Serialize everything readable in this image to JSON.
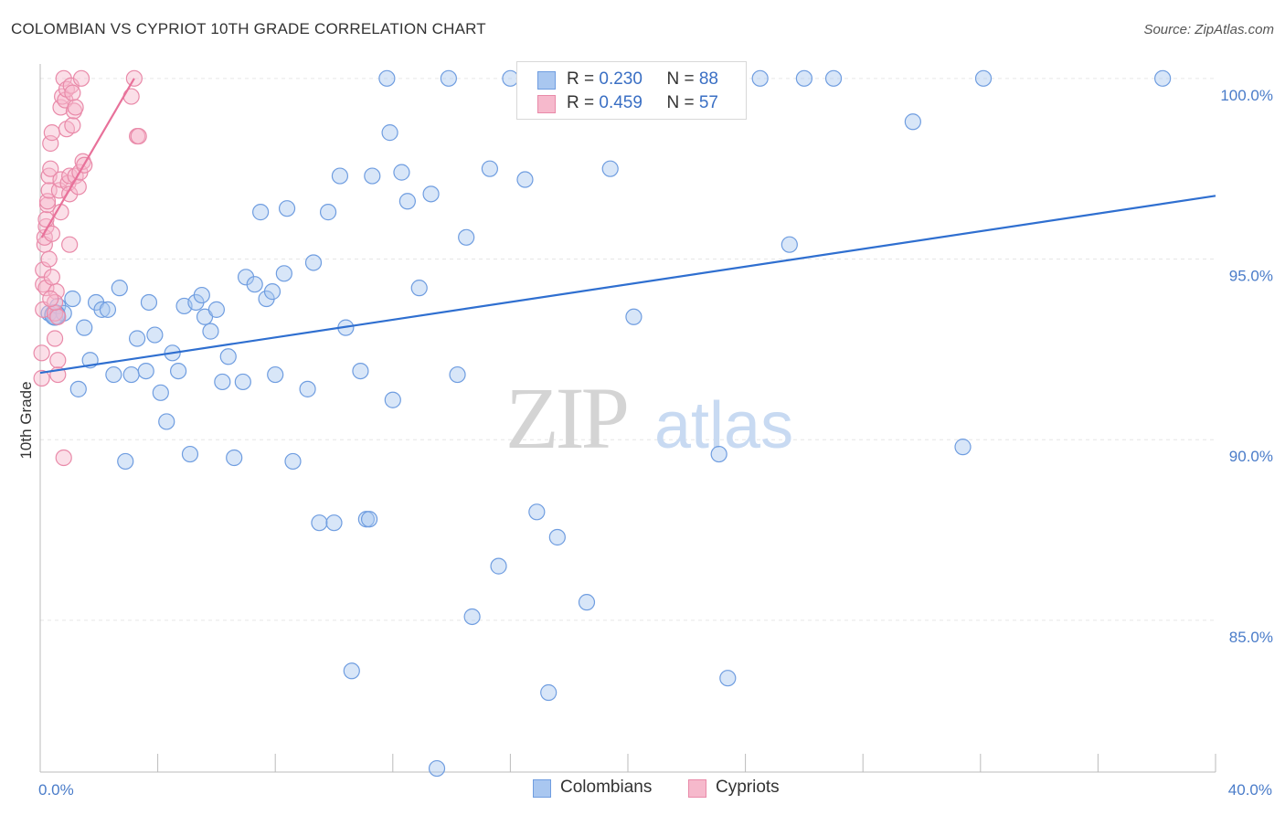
{
  "title": "COLOMBIAN VS CYPRIOT 10TH GRADE CORRELATION CHART",
  "source": "Source: ZipAtlas.com",
  "watermark": {
    "zip": "ZIP",
    "atlas": "atlas"
  },
  "legend": {
    "rows": [
      {
        "r_label": "R = ",
        "r_value": "0.230",
        "n_label": "N = ",
        "n_value": "88"
      },
      {
        "r_label": "R = ",
        "r_value": "0.459",
        "n_label": "N = ",
        "n_value": "57"
      }
    ]
  },
  "bottom_legend": [
    "Colombians",
    "Cypriots"
  ],
  "colors": {
    "blue_fill": "#a9c7f0",
    "blue_stroke": "#6f9de0",
    "blue_line": "#2f6fd0",
    "pink_fill": "#f6b9cc",
    "pink_stroke": "#e98aa9",
    "pink_line": "#e8719a",
    "grid": "#e6e6e6",
    "tick_text": "#4a7cc9"
  },
  "chart_data": {
    "type": "scatter",
    "title": "COLOMBIAN VS CYPRIOT 10TH GRADE CORRELATION CHART",
    "xlabel": "",
    "ylabel": "10th Grade",
    "xlim": [
      0,
      40
    ],
    "ylim": [
      80.8,
      100.4
    ],
    "x_tick_labels": [
      {
        "value": 0,
        "label": "0.0%"
      },
      {
        "value": 40,
        "label": "40.0%"
      }
    ],
    "y_tick_labels": [
      {
        "value": 100,
        "label": "100.0%"
      },
      {
        "value": 95,
        "label": "95.0%"
      },
      {
        "value": 90,
        "label": "90.0%"
      },
      {
        "value": 85,
        "label": "85.0%"
      }
    ],
    "series": [
      {
        "name": "Colombians",
        "R": 0.23,
        "N": 88,
        "trend": {
          "x": [
            0,
            40
          ],
          "y": [
            91.85,
            96.75
          ]
        },
        "points": [
          [
            0.3,
            93.5
          ],
          [
            0.5,
            93.4
          ],
          [
            0.6,
            93.7
          ],
          [
            0.8,
            93.5
          ],
          [
            1.1,
            93.9
          ],
          [
            1.3,
            91.4
          ],
          [
            1.5,
            93.1
          ],
          [
            1.7,
            92.2
          ],
          [
            1.9,
            93.8
          ],
          [
            2.1,
            93.6
          ],
          [
            2.3,
            93.6
          ],
          [
            2.5,
            91.8
          ],
          [
            2.7,
            94.2
          ],
          [
            2.9,
            89.4
          ],
          [
            3.1,
            91.8
          ],
          [
            3.3,
            92.8
          ],
          [
            3.6,
            91.9
          ],
          [
            3.7,
            93.8
          ],
          [
            3.9,
            92.9
          ],
          [
            4.1,
            91.3
          ],
          [
            4.3,
            90.5
          ],
          [
            4.5,
            92.4
          ],
          [
            4.7,
            91.9
          ],
          [
            4.9,
            93.7
          ],
          [
            5.1,
            89.6
          ],
          [
            5.3,
            93.8
          ],
          [
            5.5,
            94.0
          ],
          [
            5.6,
            93.4
          ],
          [
            5.8,
            93.0
          ],
          [
            6.0,
            93.6
          ],
          [
            6.2,
            91.6
          ],
          [
            6.4,
            92.3
          ],
          [
            6.6,
            89.5
          ],
          [
            6.9,
            91.6
          ],
          [
            7.0,
            94.5
          ],
          [
            7.3,
            94.3
          ],
          [
            7.5,
            96.3
          ],
          [
            7.7,
            93.9
          ],
          [
            7.9,
            94.1
          ],
          [
            8.0,
            91.8
          ],
          [
            8.3,
            94.6
          ],
          [
            8.4,
            96.4
          ],
          [
            8.6,
            89.4
          ],
          [
            9.1,
            91.4
          ],
          [
            9.3,
            94.9
          ],
          [
            9.5,
            87.7
          ],
          [
            9.8,
            96.3
          ],
          [
            10.0,
            87.7
          ],
          [
            10.2,
            97.3
          ],
          [
            10.4,
            93.1
          ],
          [
            10.6,
            83.6
          ],
          [
            10.9,
            91.9
          ],
          [
            11.1,
            87.8
          ],
          [
            11.2,
            87.8
          ],
          [
            11.3,
            97.3
          ],
          [
            11.8,
            100.0
          ],
          [
            11.9,
            98.5
          ],
          [
            12.0,
            91.1
          ],
          [
            12.3,
            97.4
          ],
          [
            12.5,
            96.6
          ],
          [
            12.9,
            94.2
          ],
          [
            13.3,
            96.8
          ],
          [
            13.5,
            80.9
          ],
          [
            13.9,
            100.0
          ],
          [
            14.2,
            91.8
          ],
          [
            14.5,
            95.6
          ],
          [
            14.7,
            85.1
          ],
          [
            15.3,
            97.5
          ],
          [
            15.6,
            86.5
          ],
          [
            16.0,
            100.0
          ],
          [
            16.5,
            97.2
          ],
          [
            16.9,
            88.0
          ],
          [
            17.3,
            83.0
          ],
          [
            17.6,
            87.3
          ],
          [
            18.2,
            100.0
          ],
          [
            18.6,
            85.5
          ],
          [
            19.4,
            97.5
          ],
          [
            20.2,
            93.4
          ],
          [
            21.8,
            100.0
          ],
          [
            23.1,
            89.6
          ],
          [
            23.4,
            83.4
          ],
          [
            24.5,
            100.0
          ],
          [
            25.5,
            95.4
          ],
          [
            26.0,
            100.0
          ],
          [
            27.0,
            100.0
          ],
          [
            29.7,
            98.8
          ],
          [
            31.4,
            89.8
          ],
          [
            32.1,
            100.0
          ],
          [
            38.2,
            100.0
          ]
        ]
      },
      {
        "name": "Cypriots",
        "R": 0.459,
        "N": 57,
        "trend": {
          "x": [
            0.05,
            3.2
          ],
          "y": [
            95.6,
            100.0
          ]
        },
        "points": [
          [
            0.05,
            91.7
          ],
          [
            0.05,
            92.4
          ],
          [
            0.1,
            93.6
          ],
          [
            0.1,
            94.3
          ],
          [
            0.1,
            94.7
          ],
          [
            0.15,
            95.4
          ],
          [
            0.15,
            95.6
          ],
          [
            0.2,
            95.9
          ],
          [
            0.2,
            96.1
          ],
          [
            0.25,
            96.5
          ],
          [
            0.25,
            96.6
          ],
          [
            0.3,
            96.9
          ],
          [
            0.3,
            97.3
          ],
          [
            0.35,
            97.5
          ],
          [
            0.35,
            98.2
          ],
          [
            0.4,
            98.5
          ],
          [
            0.2,
            94.2
          ],
          [
            0.3,
            95.0
          ],
          [
            0.4,
            95.7
          ],
          [
            0.5,
            93.5
          ],
          [
            0.5,
            92.8
          ],
          [
            0.55,
            94.1
          ],
          [
            0.6,
            91.8
          ],
          [
            0.6,
            92.2
          ],
          [
            0.65,
            96.9
          ],
          [
            0.7,
            97.2
          ],
          [
            0.7,
            99.2
          ],
          [
            0.75,
            99.5
          ],
          [
            0.8,
            100.0
          ],
          [
            0.85,
            99.4
          ],
          [
            0.9,
            99.7
          ],
          [
            0.9,
            98.6
          ],
          [
            0.95,
            97.1
          ],
          [
            1.0,
            96.8
          ],
          [
            1.0,
            97.3
          ],
          [
            1.05,
            99.8
          ],
          [
            1.1,
            99.6
          ],
          [
            1.1,
            98.7
          ],
          [
            1.15,
            99.1
          ],
          [
            1.2,
            99.2
          ],
          [
            1.2,
            97.3
          ],
          [
            1.3,
            97.0
          ],
          [
            1.35,
            97.4
          ],
          [
            1.4,
            100.0
          ],
          [
            1.45,
            97.7
          ],
          [
            1.5,
            97.6
          ],
          [
            0.8,
            89.5
          ],
          [
            0.6,
            93.4
          ],
          [
            0.5,
            93.8
          ],
          [
            0.4,
            94.5
          ],
          [
            0.35,
            93.9
          ],
          [
            0.7,
            96.3
          ],
          [
            3.1,
            99.5
          ],
          [
            3.2,
            100.0
          ],
          [
            3.3,
            98.4
          ],
          [
            3.35,
            98.4
          ],
          [
            1.0,
            95.4
          ]
        ]
      }
    ]
  }
}
